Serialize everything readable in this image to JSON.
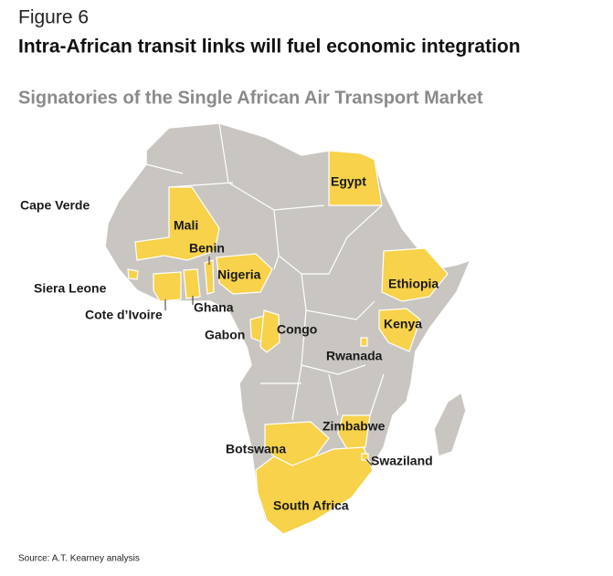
{
  "header": {
    "figure": "Figure 6",
    "title": "Intra-African transit links will fuel economic integration",
    "subtitle": "Signatories of the Single African Air Transport Market"
  },
  "map": {
    "labels": [
      "Cape Verde",
      "Mali",
      "Benin",
      "Nigeria",
      "Siera Leone",
      "Cote d’Ivoire",
      "Ghana",
      "Gabon",
      "Congo",
      "Rwanada",
      "Egypt",
      "Ethiopia",
      "Kenya",
      "Zimbabwe",
      "Botswana",
      "Swaziland",
      "South Africa"
    ]
  },
  "source": "Source: A.T. Kearney analysis"
}
